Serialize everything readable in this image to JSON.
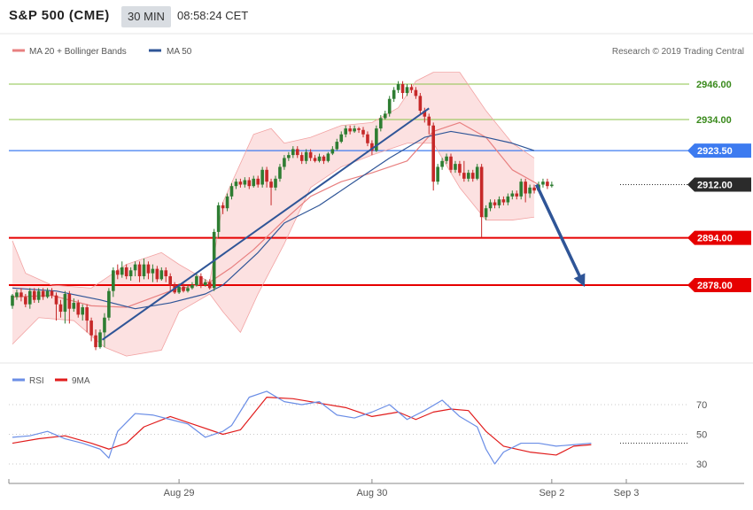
{
  "header": {
    "symbol": "S&P 500 (CME)",
    "timeframe": "30 MIN",
    "time": "08:58:24 CET"
  },
  "legend": {
    "ma20_label": "MA 20 + Bollinger Bands",
    "ma50_label": "MA 50",
    "copyright": "Research © 2019 Trading Central"
  },
  "colors": {
    "bull": "#2e7d32",
    "bear": "#c62828",
    "ma20": "#e88080",
    "ma50": "#2f5597",
    "band_fill": "#f9c9c9",
    "rsi": "#6b8ee6",
    "ma9": "#e11c1c",
    "resistance": "#8bc34a",
    "support": "#e60000",
    "pivot": "#3d7bf0",
    "last": "#2b2b2b"
  },
  "chart_data": [
    {
      "type": "candlestick",
      "price_axis_ticks": [
        2946.0,
        2934.0,
        2923.5,
        2912.0,
        2894.0,
        2878.0
      ],
      "levels": {
        "resistance": [
          2946.0,
          2934.0
        ],
        "pivot": 2923.5,
        "last_price": 2912.0,
        "support": [
          2894.0,
          2878.0
        ]
      },
      "x_ticks": [
        "Aug 29",
        "Aug 30",
        "Sep 2",
        "Sep 3"
      ],
      "ylim": [
        2857,
        2962
      ],
      "candles": [
        [
          2871,
          2874.5,
          2870,
          2875
        ],
        [
          2874,
          2875.5,
          2873,
          2876.5
        ],
        [
          2875.5,
          2874,
          2872.5,
          2877
        ],
        [
          2874,
          2871.5,
          2870.5,
          2875
        ],
        [
          2871.5,
          2876,
          2870,
          2877
        ],
        [
          2876,
          2873,
          2872,
          2877
        ],
        [
          2873,
          2876,
          2872,
          2877
        ],
        [
          2876,
          2874,
          2873,
          2877
        ],
        [
          2874,
          2876,
          2873.5,
          2877
        ],
        [
          2876,
          2874.5,
          2873.5,
          2877
        ],
        [
          2874.5,
          2871.5,
          2866,
          2875.5
        ],
        [
          2871.5,
          2869,
          2867,
          2873
        ],
        [
          2869,
          2875,
          2865,
          2876
        ],
        [
          2875,
          2870,
          2865,
          2876
        ],
        [
          2870,
          2872,
          2869,
          2873.5
        ],
        [
          2872,
          2868,
          2867,
          2873
        ],
        [
          2868,
          2870.5,
          2866,
          2871.5
        ],
        [
          2870.5,
          2866,
          2862,
          2871.5
        ],
        [
          2866,
          2861,
          2859,
          2867
        ],
        [
          2861,
          2857,
          2856,
          2863
        ],
        [
          2857,
          2862,
          2856.5,
          2863
        ],
        [
          2862,
          2867,
          2857,
          2868.5
        ],
        [
          2867,
          2876,
          2866,
          2877
        ],
        [
          2876,
          2883,
          2874,
          2884
        ],
        [
          2883,
          2881.5,
          2880,
          2885
        ],
        [
          2881.5,
          2884,
          2880.5,
          2886
        ],
        [
          2884,
          2881,
          2880,
          2885
        ],
        [
          2881,
          2883,
          2879.5,
          2884
        ],
        [
          2883,
          2885,
          2881,
          2886
        ],
        [
          2885,
          2881,
          2879,
          2886
        ],
        [
          2881,
          2885,
          2880,
          2887
        ],
        [
          2885,
          2882,
          2880,
          2886
        ],
        [
          2882,
          2883.5,
          2879,
          2885
        ],
        [
          2883.5,
          2880,
          2879,
          2884.5
        ],
        [
          2880,
          2883,
          2879.5,
          2884
        ],
        [
          2883,
          2881,
          2879,
          2884
        ],
        [
          2881,
          2878,
          2876,
          2882
        ],
        [
          2878,
          2875.5,
          2875,
          2879
        ],
        [
          2875.5,
          2877.5,
          2875,
          2878.5
        ],
        [
          2877.5,
          2876,
          2875.5,
          2878.5
        ],
        [
          2876,
          2877,
          2875.5,
          2878
        ],
        [
          2877,
          2878,
          2876.5,
          2879
        ],
        [
          2878,
          2881,
          2877.5,
          2882
        ],
        [
          2881,
          2878,
          2877,
          2882
        ],
        [
          2878,
          2879,
          2877.5,
          2880
        ],
        [
          2879,
          2877,
          2876.5,
          2880
        ],
        [
          2877,
          2896,
          2876,
          2897
        ],
        [
          2896,
          2905,
          2894,
          2906
        ],
        [
          2905,
          2904,
          2902,
          2906
        ],
        [
          2904,
          2908,
          2903,
          2909
        ],
        [
          2908,
          2911.5,
          2907,
          2912.5
        ],
        [
          2911.5,
          2913,
          2910.5,
          2914
        ],
        [
          2913,
          2912,
          2911,
          2914
        ],
        [
          2912,
          2913.5,
          2911,
          2914.5
        ],
        [
          2913.5,
          2911.5,
          2910.5,
          2914.5
        ],
        [
          2911.5,
          2914,
          2911,
          2915
        ],
        [
          2914,
          2912,
          2911,
          2915
        ],
        [
          2912,
          2917,
          2911,
          2918
        ],
        [
          2917,
          2913,
          2911,
          2918
        ],
        [
          2913,
          2911,
          2905,
          2914
        ],
        [
          2911,
          2914,
          2910,
          2915
        ],
        [
          2914,
          2918,
          2913,
          2919
        ],
        [
          2918,
          2921,
          2917,
          2922
        ],
        [
          2921,
          2922,
          2920,
          2923
        ],
        [
          2922,
          2924,
          2921,
          2925
        ],
        [
          2924,
          2922,
          2921,
          2925
        ],
        [
          2922,
          2920,
          2919,
          2923
        ],
        [
          2920,
          2923,
          2919,
          2924
        ],
        [
          2923,
          2921,
          2920,
          2924
        ],
        [
          2921,
          2920,
          2919.5,
          2922
        ],
        [
          2920,
          2921.5,
          2919.5,
          2922.5
        ],
        [
          2921.5,
          2920,
          2919,
          2922
        ],
        [
          2920,
          2922.5,
          2919.5,
          2923
        ],
        [
          2922.5,
          2924,
          2922,
          2925
        ],
        [
          2924,
          2926.5,
          2923.5,
          2927.5
        ],
        [
          2926.5,
          2929,
          2926,
          2930
        ],
        [
          2929,
          2931,
          2928,
          2932
        ],
        [
          2931,
          2930,
          2929,
          2932
        ],
        [
          2930,
          2931,
          2929.5,
          2932
        ],
        [
          2931,
          2930.5,
          2929.5,
          2931.5
        ],
        [
          2930.5,
          2929,
          2928,
          2931.5
        ],
        [
          2929,
          2926,
          2925,
          2930
        ],
        [
          2926,
          2923.5,
          2922,
          2927
        ],
        [
          2923.5,
          2931,
          2923,
          2932
        ],
        [
          2931,
          2934.5,
          2930,
          2935.5
        ],
        [
          2934.5,
          2936,
          2934,
          2937
        ],
        [
          2936,
          2941,
          2935,
          2942
        ],
        [
          2941,
          2944,
          2940,
          2945
        ],
        [
          2944,
          2946,
          2943,
          2947
        ],
        [
          2946,
          2943,
          2941,
          2947
        ],
        [
          2943,
          2945,
          2942,
          2946
        ],
        [
          2945,
          2944,
          2943,
          2946
        ],
        [
          2944,
          2942,
          2941,
          2945
        ],
        [
          2942,
          2937,
          2936,
          2943
        ],
        [
          2937,
          2935,
          2933,
          2938
        ],
        [
          2935,
          2932,
          2929,
          2936
        ],
        [
          2932,
          2913,
          2910,
          2933
        ],
        [
          2913,
          2918,
          2912,
          2919
        ],
        [
          2918,
          2920,
          2917,
          2921
        ],
        [
          2920,
          2921.5,
          2919,
          2922.5
        ],
        [
          2921.5,
          2917,
          2916,
          2922.5
        ],
        [
          2917,
          2919,
          2916,
          2920
        ],
        [
          2919,
          2916,
          2915,
          2920
        ],
        [
          2916,
          2914,
          2913,
          2920
        ],
        [
          2914,
          2916,
          2913,
          2917
        ],
        [
          2916,
          2914,
          2913,
          2917
        ],
        [
          2914,
          2918,
          2913.5,
          2919
        ],
        [
          2918,
          2901,
          2894,
          2919
        ],
        [
          2901,
          2904,
          2900,
          2905
        ],
        [
          2904,
          2906,
          2903,
          2907
        ],
        [
          2906,
          2905,
          2904,
          2907
        ],
        [
          2905,
          2907,
          2904,
          2908
        ],
        [
          2907,
          2906,
          2905,
          2908
        ],
        [
          2906,
          2908,
          2905,
          2909
        ],
        [
          2908,
          2909,
          2907,
          2910
        ],
        [
          2909,
          2908,
          2907,
          2910
        ],
        [
          2908,
          2913,
          2907,
          2914
        ],
        [
          2913,
          2909,
          2906,
          2914
        ],
        [
          2909,
          2911,
          2907.5,
          2912
        ],
        [
          2911,
          2910,
          2909,
          2912
        ],
        [
          2910,
          2912,
          2909.5,
          2913
        ],
        [
          2912,
          2913,
          2911,
          2914
        ],
        [
          2913,
          2911.5,
          2910.5,
          2914
        ],
        [
          2911.5,
          2912,
          2911,
          2913
        ]
      ],
      "ma20": [
        [
          0,
          2874
        ],
        [
          9,
          2874.5
        ],
        [
          18,
          2871
        ],
        [
          26,
          2870.5
        ],
        [
          36,
          2876
        ],
        [
          45,
          2879
        ],
        [
          50,
          2884
        ],
        [
          55,
          2890
        ],
        [
          62,
          2900
        ],
        [
          68,
          2908
        ],
        [
          75,
          2913
        ],
        [
          82,
          2916
        ],
        [
          90,
          2920
        ],
        [
          96,
          2930
        ],
        [
          102,
          2933
        ],
        [
          108,
          2928
        ],
        [
          114,
          2917
        ],
        [
          120,
          2912
        ]
      ],
      "boll_upper": [
        [
          0,
          2893
        ],
        [
          3,
          2882
        ],
        [
          9,
          2878
        ],
        [
          18,
          2877
        ],
        [
          26,
          2885
        ],
        [
          34,
          2889
        ],
        [
          38,
          2885
        ],
        [
          45,
          2879
        ],
        [
          48,
          2906
        ],
        [
          55,
          2929
        ],
        [
          59,
          2931
        ],
        [
          62,
          2926
        ],
        [
          68,
          2928
        ],
        [
          75,
          2932
        ],
        [
          82,
          2933
        ],
        [
          88,
          2938
        ],
        [
          92,
          2947
        ],
        [
          96,
          2950
        ],
        [
          102,
          2950
        ],
        [
          108,
          2937
        ],
        [
          114,
          2926
        ],
        [
          119,
          2921
        ]
      ],
      "boll_lower": [
        [
          0,
          2858
        ],
        [
          6,
          2867
        ],
        [
          14,
          2866
        ],
        [
          21,
          2857
        ],
        [
          26,
          2854
        ],
        [
          34,
          2856
        ],
        [
          38,
          2869
        ],
        [
          45,
          2875
        ],
        [
          48,
          2869
        ],
        [
          52,
          2862
        ],
        [
          56,
          2875
        ],
        [
          62,
          2892
        ],
        [
          68,
          2911
        ],
        [
          75,
          2918
        ],
        [
          82,
          2922
        ],
        [
          90,
          2926
        ],
        [
          96,
          2926
        ],
        [
          102,
          2911
        ],
        [
          108,
          2900
        ],
        [
          114,
          2900
        ],
        [
          119,
          2901
        ]
      ],
      "ma50": [
        [
          0,
          2877
        ],
        [
          10,
          2876
        ],
        [
          20,
          2873
        ],
        [
          28,
          2870
        ],
        [
          36,
          2872
        ],
        [
          44,
          2875
        ],
        [
          48,
          2878
        ],
        [
          56,
          2889
        ],
        [
          62,
          2899
        ],
        [
          70,
          2905
        ],
        [
          78,
          2913
        ],
        [
          86,
          2921
        ],
        [
          94,
          2928
        ],
        [
          100,
          2930
        ],
        [
          108,
          2928
        ],
        [
          114,
          2926
        ],
        [
          119,
          2923.5
        ]
      ],
      "trendlines": [
        {
          "from": [
            20.5,
            2859.5
          ],
          "to": [
            95,
            2937.8
          ]
        }
      ],
      "forecast_arrow": {
        "from": [
          119.5,
          2912
        ],
        "to": [
          130,
          2879
        ]
      }
    },
    {
      "type": "line",
      "name": "RSI",
      "y_ticks": [
        70,
        50,
        30
      ],
      "ylim": [
        20,
        82
      ],
      "reference_line": 44,
      "rsi": [
        [
          0,
          48
        ],
        [
          4,
          49
        ],
        [
          8,
          52
        ],
        [
          12,
          47
        ],
        [
          16,
          44
        ],
        [
          20,
          40
        ],
        [
          22,
          34
        ],
        [
          24,
          52
        ],
        [
          28,
          64
        ],
        [
          32,
          63
        ],
        [
          36,
          60
        ],
        [
          40,
          57
        ],
        [
          44,
          48
        ],
        [
          48,
          52
        ],
        [
          50,
          56
        ],
        [
          54,
          75
        ],
        [
          58,
          79
        ],
        [
          62,
          72
        ],
        [
          66,
          70
        ],
        [
          70,
          72
        ],
        [
          74,
          63
        ],
        [
          78,
          61
        ],
        [
          82,
          65
        ],
        [
          86,
          70
        ],
        [
          90,
          60
        ],
        [
          94,
          66
        ],
        [
          98,
          73
        ],
        [
          102,
          62
        ],
        [
          106,
          55
        ],
        [
          108,
          40
        ],
        [
          110,
          30
        ],
        [
          112,
          38
        ],
        [
          116,
          44
        ],
        [
          120,
          44
        ],
        [
          124,
          42
        ],
        [
          128,
          43
        ],
        [
          132,
          44
        ]
      ],
      "ma9": [
        [
          0,
          44
        ],
        [
          6,
          47
        ],
        [
          12,
          49
        ],
        [
          18,
          44
        ],
        [
          22,
          40
        ],
        [
          26,
          44
        ],
        [
          30,
          55
        ],
        [
          36,
          62
        ],
        [
          42,
          56
        ],
        [
          48,
          50
        ],
        [
          52,
          53
        ],
        [
          58,
          75
        ],
        [
          64,
          74
        ],
        [
          70,
          71
        ],
        [
          76,
          68
        ],
        [
          82,
          62
        ],
        [
          88,
          65
        ],
        [
          92,
          60
        ],
        [
          96,
          65
        ],
        [
          100,
          67
        ],
        [
          104,
          66
        ],
        [
          108,
          52
        ],
        [
          112,
          42
        ],
        [
          118,
          38
        ],
        [
          124,
          36
        ],
        [
          128,
          42
        ],
        [
          132,
          43
        ]
      ]
    }
  ]
}
